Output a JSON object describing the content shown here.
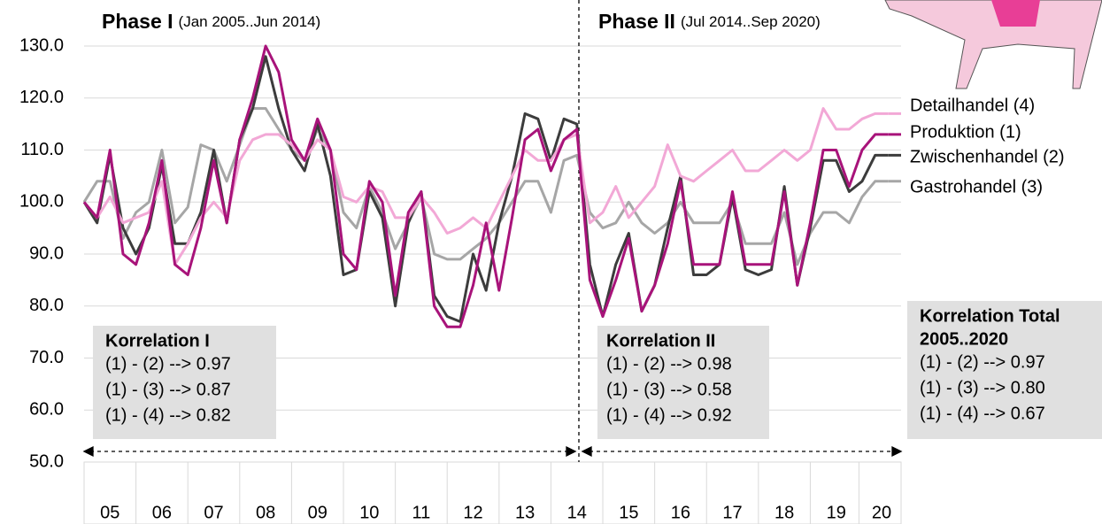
{
  "chart_data": {
    "type": "line",
    "annotations": {
      "phase1": {
        "title": "Phase I",
        "range": "(Jan 2005..Jun 2014)"
      },
      "phase2": {
        "title": "Phase II",
        "range": "(Jul 2014..Sep 2020)"
      },
      "corr1": {
        "title": "Korrelation I",
        "lines": [
          "(1) - (2) --> 0.97",
          "(1) - (3) --> 0.87",
          "(1) - (4) --> 0.82"
        ]
      },
      "corr2": {
        "title": "Korrelation II",
        "lines": [
          "(1) - (2) --> 0.98",
          "(1) - (3) --> 0.58",
          "(1) - (4) --> 0.92"
        ]
      },
      "corr_total": {
        "title": [
          "Korrelation Total",
          "2005..2020"
        ],
        "lines": [
          "(1) - (2) --> 0.97",
          "(1) - (3) --> 0.80",
          "(1) - (4) --> 0.67"
        ]
      }
    },
    "x": [
      2005,
      2005.25,
      2005.5,
      2005.75,
      2006,
      2006.25,
      2006.5,
      2006.75,
      2007,
      2007.25,
      2007.5,
      2007.75,
      2008,
      2008.25,
      2008.5,
      2008.75,
      2009,
      2009.25,
      2009.5,
      2009.75,
      2010,
      2010.25,
      2010.5,
      2010.75,
      2011,
      2011.25,
      2011.5,
      2011.75,
      2012,
      2012.25,
      2012.5,
      2012.75,
      2013,
      2013.25,
      2013.5,
      2013.75,
      2014,
      2014.25,
      2014.5,
      2014.75,
      2015,
      2015.25,
      2015.5,
      2015.75,
      2016,
      2016.25,
      2016.5,
      2016.75,
      2017,
      2017.25,
      2017.5,
      2017.75,
      2018,
      2018.25,
      2018.5,
      2018.75,
      2019,
      2019.25,
      2019.5,
      2019.75,
      2020,
      2020.25,
      2020.5
    ],
    "series": [
      {
        "name": "Detailhandel (4)",
        "color": "#f2a8d6",
        "values": [
          100,
          97,
          101,
          96,
          97,
          98,
          104,
          88,
          92,
          97,
          100,
          97,
          108,
          112,
          113,
          113,
          111,
          108,
          112,
          110,
          101,
          100,
          103,
          102,
          97,
          97,
          101,
          98,
          94,
          95,
          97,
          95,
          100,
          105,
          110,
          108,
          108,
          112,
          113,
          96,
          98,
          103,
          97,
          100,
          103,
          111,
          105,
          104,
          106,
          108,
          110,
          106,
          106,
          108,
          110,
          108,
          110,
          118,
          114,
          114,
          116,
          117,
          117
        ]
      },
      {
        "name": "Produktion (1)",
        "color": "#a8137a",
        "values": [
          100,
          97,
          110,
          90,
          88,
          96,
          108,
          88,
          86,
          95,
          108,
          96,
          112,
          120,
          130,
          125,
          112,
          108,
          116,
          110,
          90,
          87,
          104,
          100,
          82,
          98,
          102,
          80,
          76,
          76,
          84,
          96,
          83,
          97,
          112,
          114,
          106,
          112,
          114,
          85,
          78,
          85,
          93,
          79,
          84,
          92,
          104,
          88,
          88,
          88,
          102,
          88,
          88,
          88,
          102,
          84,
          96,
          110,
          110,
          103,
          110,
          113,
          113
        ]
      },
      {
        "name": "Zwischenhandel (2)",
        "color": "#3c3c3c",
        "values": [
          100,
          96,
          109,
          95,
          90,
          95,
          107,
          92,
          92,
          98,
          110,
          96,
          112,
          118,
          128,
          118,
          110,
          106,
          115,
          105,
          86,
          87,
          102,
          97,
          80,
          96,
          102,
          82,
          78,
          77,
          90,
          83,
          96,
          105,
          117,
          116,
          108,
          116,
          115,
          88,
          78,
          88,
          94,
          79,
          84,
          95,
          105,
          86,
          86,
          88,
          101,
          87,
          86,
          87,
          103,
          84,
          95,
          108,
          108,
          102,
          104,
          109,
          109
        ]
      },
      {
        "name": "Gastrohandel (3)",
        "color": "#a6a6a6",
        "values": [
          100,
          104,
          104,
          93,
          98,
          100,
          110,
          96,
          99,
          111,
          110,
          104,
          111,
          118,
          118,
          114,
          110,
          108,
          114,
          110,
          98,
          95,
          103,
          98,
          91,
          96,
          101,
          90,
          89,
          89,
          91,
          93,
          96,
          100,
          104,
          104,
          98,
          108,
          109,
          98,
          95,
          96,
          100,
          96,
          94,
          96,
          100,
          96,
          96,
          96,
          100,
          92,
          92,
          92,
          98,
          88,
          94,
          98,
          98,
          96,
          101,
          104,
          104
        ]
      }
    ],
    "xlim": [
      2005,
      2020.75
    ],
    "xticks": [
      {
        "value": 2005.5,
        "label": "05"
      },
      {
        "value": 2006.5,
        "label": "06"
      },
      {
        "value": 2007.5,
        "label": "07"
      },
      {
        "value": 2008.5,
        "label": "08"
      },
      {
        "value": 2009.5,
        "label": "09"
      },
      {
        "value": 2010.5,
        "label": "10"
      },
      {
        "value": 2011.5,
        "label": "11"
      },
      {
        "value": 2012.5,
        "label": "12"
      },
      {
        "value": 2013.5,
        "label": "13"
      },
      {
        "value": 2014.5,
        "label": "14"
      },
      {
        "value": 2015.5,
        "label": "15"
      },
      {
        "value": 2016.5,
        "label": "16"
      },
      {
        "value": 2017.5,
        "label": "17"
      },
      {
        "value": 2018.5,
        "label": "18"
      },
      {
        "value": 2019.5,
        "label": "19"
      },
      {
        "value": 2020.375,
        "label": "20"
      }
    ],
    "ylim": [
      50,
      130
    ],
    "yticks": [
      {
        "value": 50,
        "label": "50.0"
      },
      {
        "value": 60,
        "label": "60.0"
      },
      {
        "value": 70,
        "label": "70.0"
      },
      {
        "value": 80,
        "label": "80.0"
      },
      {
        "value": 90,
        "label": "90.0"
      },
      {
        "value": 100,
        "label": "100.0"
      },
      {
        "value": 110,
        "label": "110.0"
      },
      {
        "value": 120,
        "label": "120.0"
      },
      {
        "value": 130,
        "label": "130.0"
      }
    ],
    "grid": true
  }
}
